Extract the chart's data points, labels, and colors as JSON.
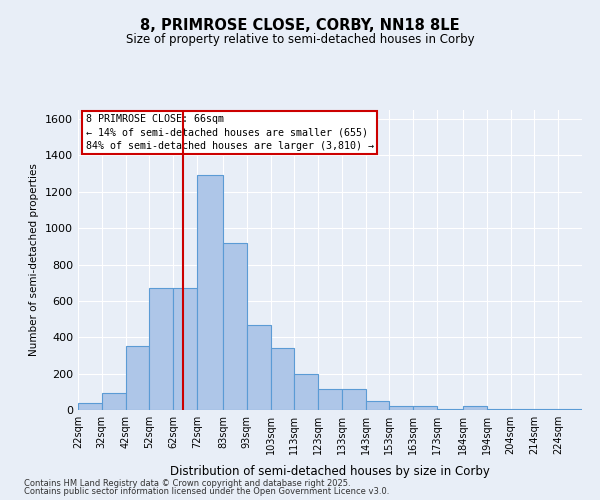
{
  "title1": "8, PRIMROSE CLOSE, CORBY, NN18 8LE",
  "title2": "Size of property relative to semi-detached houses in Corby",
  "xlabel": "Distribution of semi-detached houses by size in Corby",
  "ylabel": "Number of semi-detached properties",
  "categories": [
    "22sqm",
    "32sqm",
    "42sqm",
    "52sqm",
    "62sqm",
    "72sqm",
    "83sqm",
    "93sqm",
    "103sqm",
    "113sqm",
    "123sqm",
    "133sqm",
    "143sqm",
    "153sqm",
    "163sqm",
    "173sqm",
    "184sqm",
    "194sqm",
    "204sqm",
    "214sqm",
    "224sqm"
  ],
  "bin_lefts": [
    22,
    32,
    42,
    52,
    62,
    72,
    83,
    93,
    103,
    113,
    123,
    133,
    143,
    153,
    163,
    173,
    184,
    194,
    204,
    214,
    224
  ],
  "bin_widths": [
    10,
    10,
    10,
    10,
    10,
    11,
    10,
    10,
    10,
    10,
    10,
    10,
    10,
    10,
    10,
    11,
    10,
    10,
    10,
    10,
    10
  ],
  "values": [
    40,
    95,
    350,
    670,
    670,
    1290,
    920,
    470,
    340,
    200,
    115,
    115,
    50,
    20,
    20,
    5,
    20,
    5,
    5,
    5,
    5
  ],
  "bar_color": "#aec6e8",
  "bar_edge_color": "#5b9bd5",
  "bg_color": "#e8eef7",
  "grid_color": "#ffffff",
  "vline_x": 66,
  "vline_color": "#cc0000",
  "annotation_title": "8 PRIMROSE CLOSE: 66sqm",
  "annotation_line1": "← 14% of semi-detached houses are smaller (655)",
  "annotation_line2": "84% of semi-detached houses are larger (3,810) →",
  "annotation_box_color": "#ffffff",
  "annotation_box_edge": "#cc0000",
  "ylim": [
    0,
    1650
  ],
  "yticks": [
    0,
    200,
    400,
    600,
    800,
    1000,
    1200,
    1400,
    1600
  ],
  "xlim_left": 22,
  "xlim_right": 234,
  "footer1": "Contains HM Land Registry data © Crown copyright and database right 2025.",
  "footer2": "Contains public sector information licensed under the Open Government Licence v3.0."
}
